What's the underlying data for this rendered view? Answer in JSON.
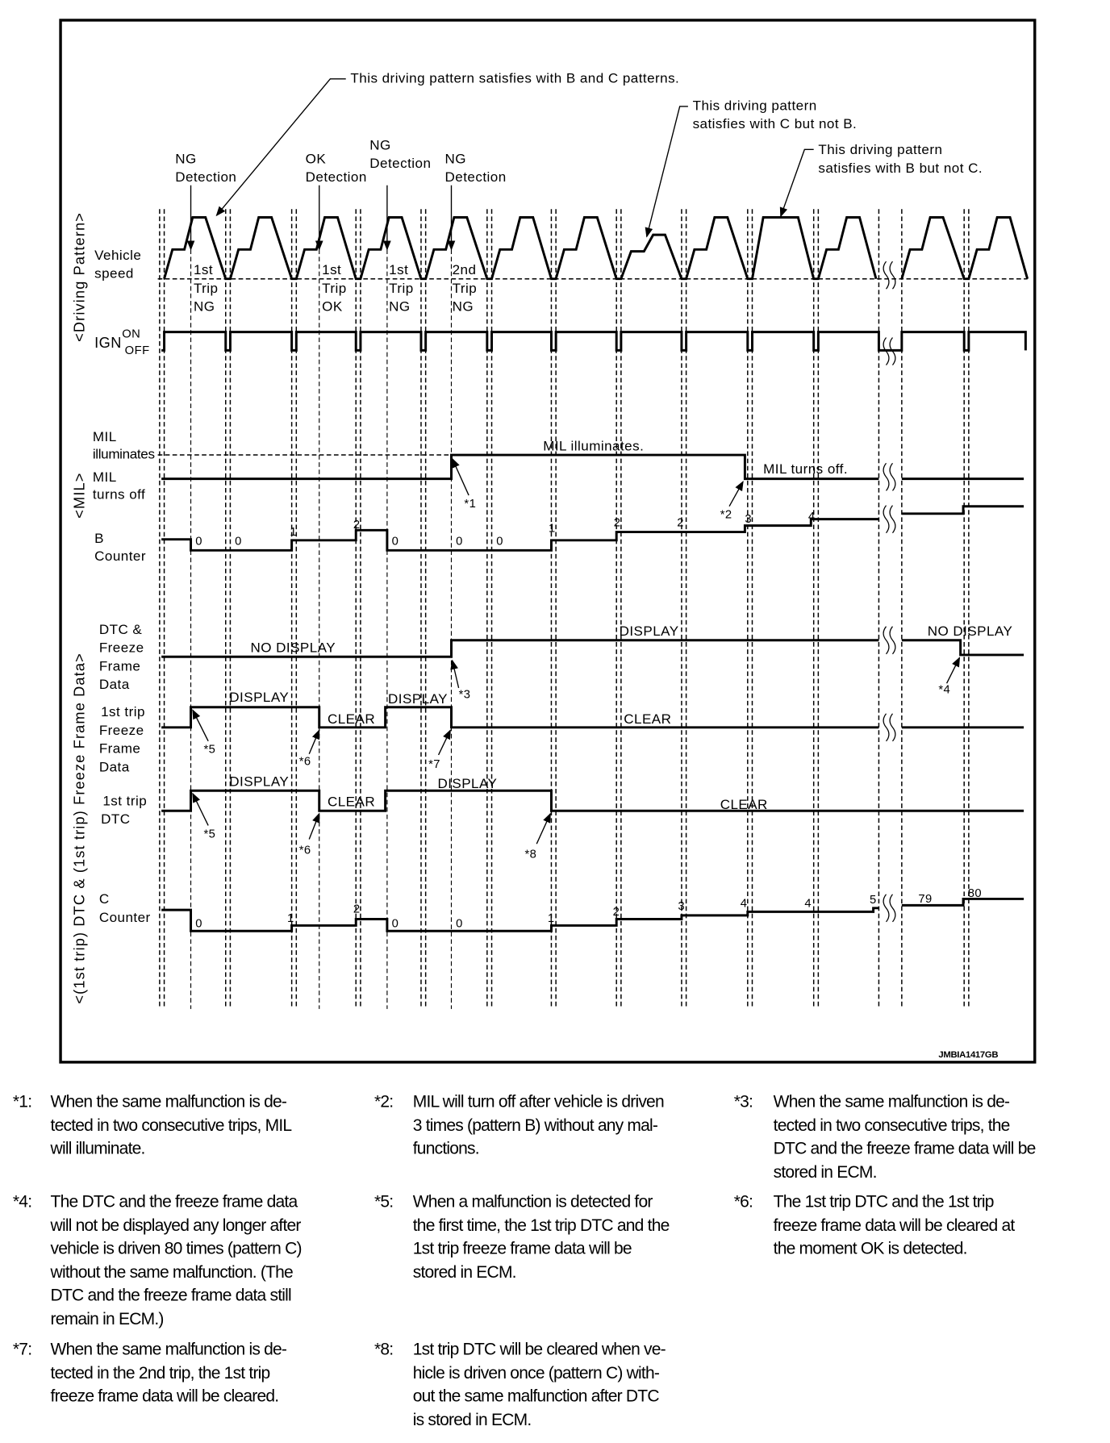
{
  "figure_id": "JMBIA1417GB",
  "annotations": {
    "b_and_c": "This driving pattern satisfies with B and C patterns.",
    "c_not_b": [
      "This driving pattern",
      "satisfies with C but not B."
    ],
    "b_not_c": [
      "This driving pattern",
      "satisfies with B but not C."
    ]
  },
  "detections": [
    [
      "NG",
      "Detection"
    ],
    [
      "OK",
      "Detection"
    ],
    [
      "NG",
      "Detection"
    ],
    [
      "NG",
      "Detection"
    ]
  ],
  "trips": [
    [
      "1st",
      "Trip",
      "NG"
    ],
    [
      "1st",
      "Trip",
      "OK"
    ],
    [
      "1st",
      "Trip",
      "NG"
    ],
    [
      "2nd",
      "Trip",
      "NG"
    ]
  ],
  "row_labels": {
    "driving_pattern_group": "<Driving Pattern>",
    "vehicle_speed": [
      "Vehicle",
      "speed"
    ],
    "ign": "IGN",
    "ign_on": "ON",
    "ign_off": "OFF",
    "mil_group": "<MIL>",
    "mil_illuminates": [
      "MIL",
      "illuminates"
    ],
    "mil_turns_off": [
      "MIL",
      "turns off"
    ],
    "b_counter": [
      "B",
      "Counter"
    ],
    "dtc_group": "<(1st trip) DTC & (1st trip) Freeze Frame Data>",
    "dtc_ffd": [
      "DTC &",
      "Freeze",
      "Frame",
      "Data"
    ],
    "first_trip_ffd": [
      "1st trip",
      "Freeze",
      "Frame",
      "Data"
    ],
    "first_trip_dtc": [
      "1st trip",
      "DTC"
    ],
    "c_counter": [
      "C",
      "Counter"
    ]
  },
  "signal_labels": {
    "mil_on": "MIL illuminates.",
    "mil_off": "MIL turns off.",
    "dtc_no_display": "NO DISPLAY",
    "dtc_display": "DISPLAY",
    "dtc_no_display_end": "NO DISPLAY",
    "ffd": [
      "DISPLAY",
      "CLEAR",
      "DISPLAY",
      "CLEAR"
    ],
    "dtc1": [
      "DISPLAY",
      "CLEAR",
      "DISPLAY",
      "CLEAR"
    ]
  },
  "note_refs": {
    "mil_on": "*1",
    "mil_off": "*2",
    "dtc_on": "*3",
    "dtc_off": "*4",
    "ffd_store": "*5",
    "ffd_clear_ok": "*6",
    "ffd_clear_2nd": "*7",
    "dtc1_store": "*5",
    "dtc1_clear_ok": "*6",
    "dtc1_clear": "*8"
  },
  "b_counter_values": [
    "0",
    "0",
    "1",
    "2",
    "0",
    "0",
    "0",
    "1",
    "2",
    "2",
    "3",
    "4"
  ],
  "c_counter_values": [
    "0",
    "1",
    "2",
    "0",
    "0",
    "1",
    "2",
    "3",
    "4",
    "4",
    "5",
    "79",
    "80"
  ],
  "notes": [
    {
      "marker": "*1:",
      "lines": [
        "When the same malfunction is de-",
        "tected in two consecutive trips, MIL",
        "will illuminate."
      ]
    },
    {
      "marker": "*2:",
      "lines": [
        "MIL will turn off after vehicle is driven",
        "3 times (pattern B) without any mal-",
        "functions."
      ]
    },
    {
      "marker": "*3:",
      "lines": [
        "When the same malfunction is de-",
        "tected in two consecutive trips, the",
        "DTC and the freeze frame data will be",
        "stored in ECM."
      ]
    },
    {
      "marker": "*4:",
      "lines": [
        "The DTC and the freeze frame data",
        "will not be displayed any longer after",
        "vehicle is driven 80 times (pattern C)",
        "without the same malfunction. (The",
        "DTC and the freeze frame data still",
        "remain in ECM.)"
      ]
    },
    {
      "marker": "*5:",
      "lines": [
        "When a malfunction is detected for",
        "the first time, the 1st trip DTC and the",
        "1st trip freeze frame data will be",
        "stored in ECM."
      ]
    },
    {
      "marker": "*6:",
      "lines": [
        "The 1st trip DTC and the 1st trip",
        "freeze frame data will be cleared at",
        "the moment OK is detected."
      ]
    },
    {
      "marker": "*7:",
      "lines": [
        "When the same malfunction is de-",
        "tected in the 2nd trip, the 1st trip",
        "freeze frame data will be cleared."
      ]
    },
    {
      "marker": "*8:",
      "lines": [
        "1st trip DTC will be cleared when ve-",
        "hicle is driven once (pattern C) with-",
        "out the same malfunction after DTC",
        "is stored in ECM."
      ]
    }
  ]
}
